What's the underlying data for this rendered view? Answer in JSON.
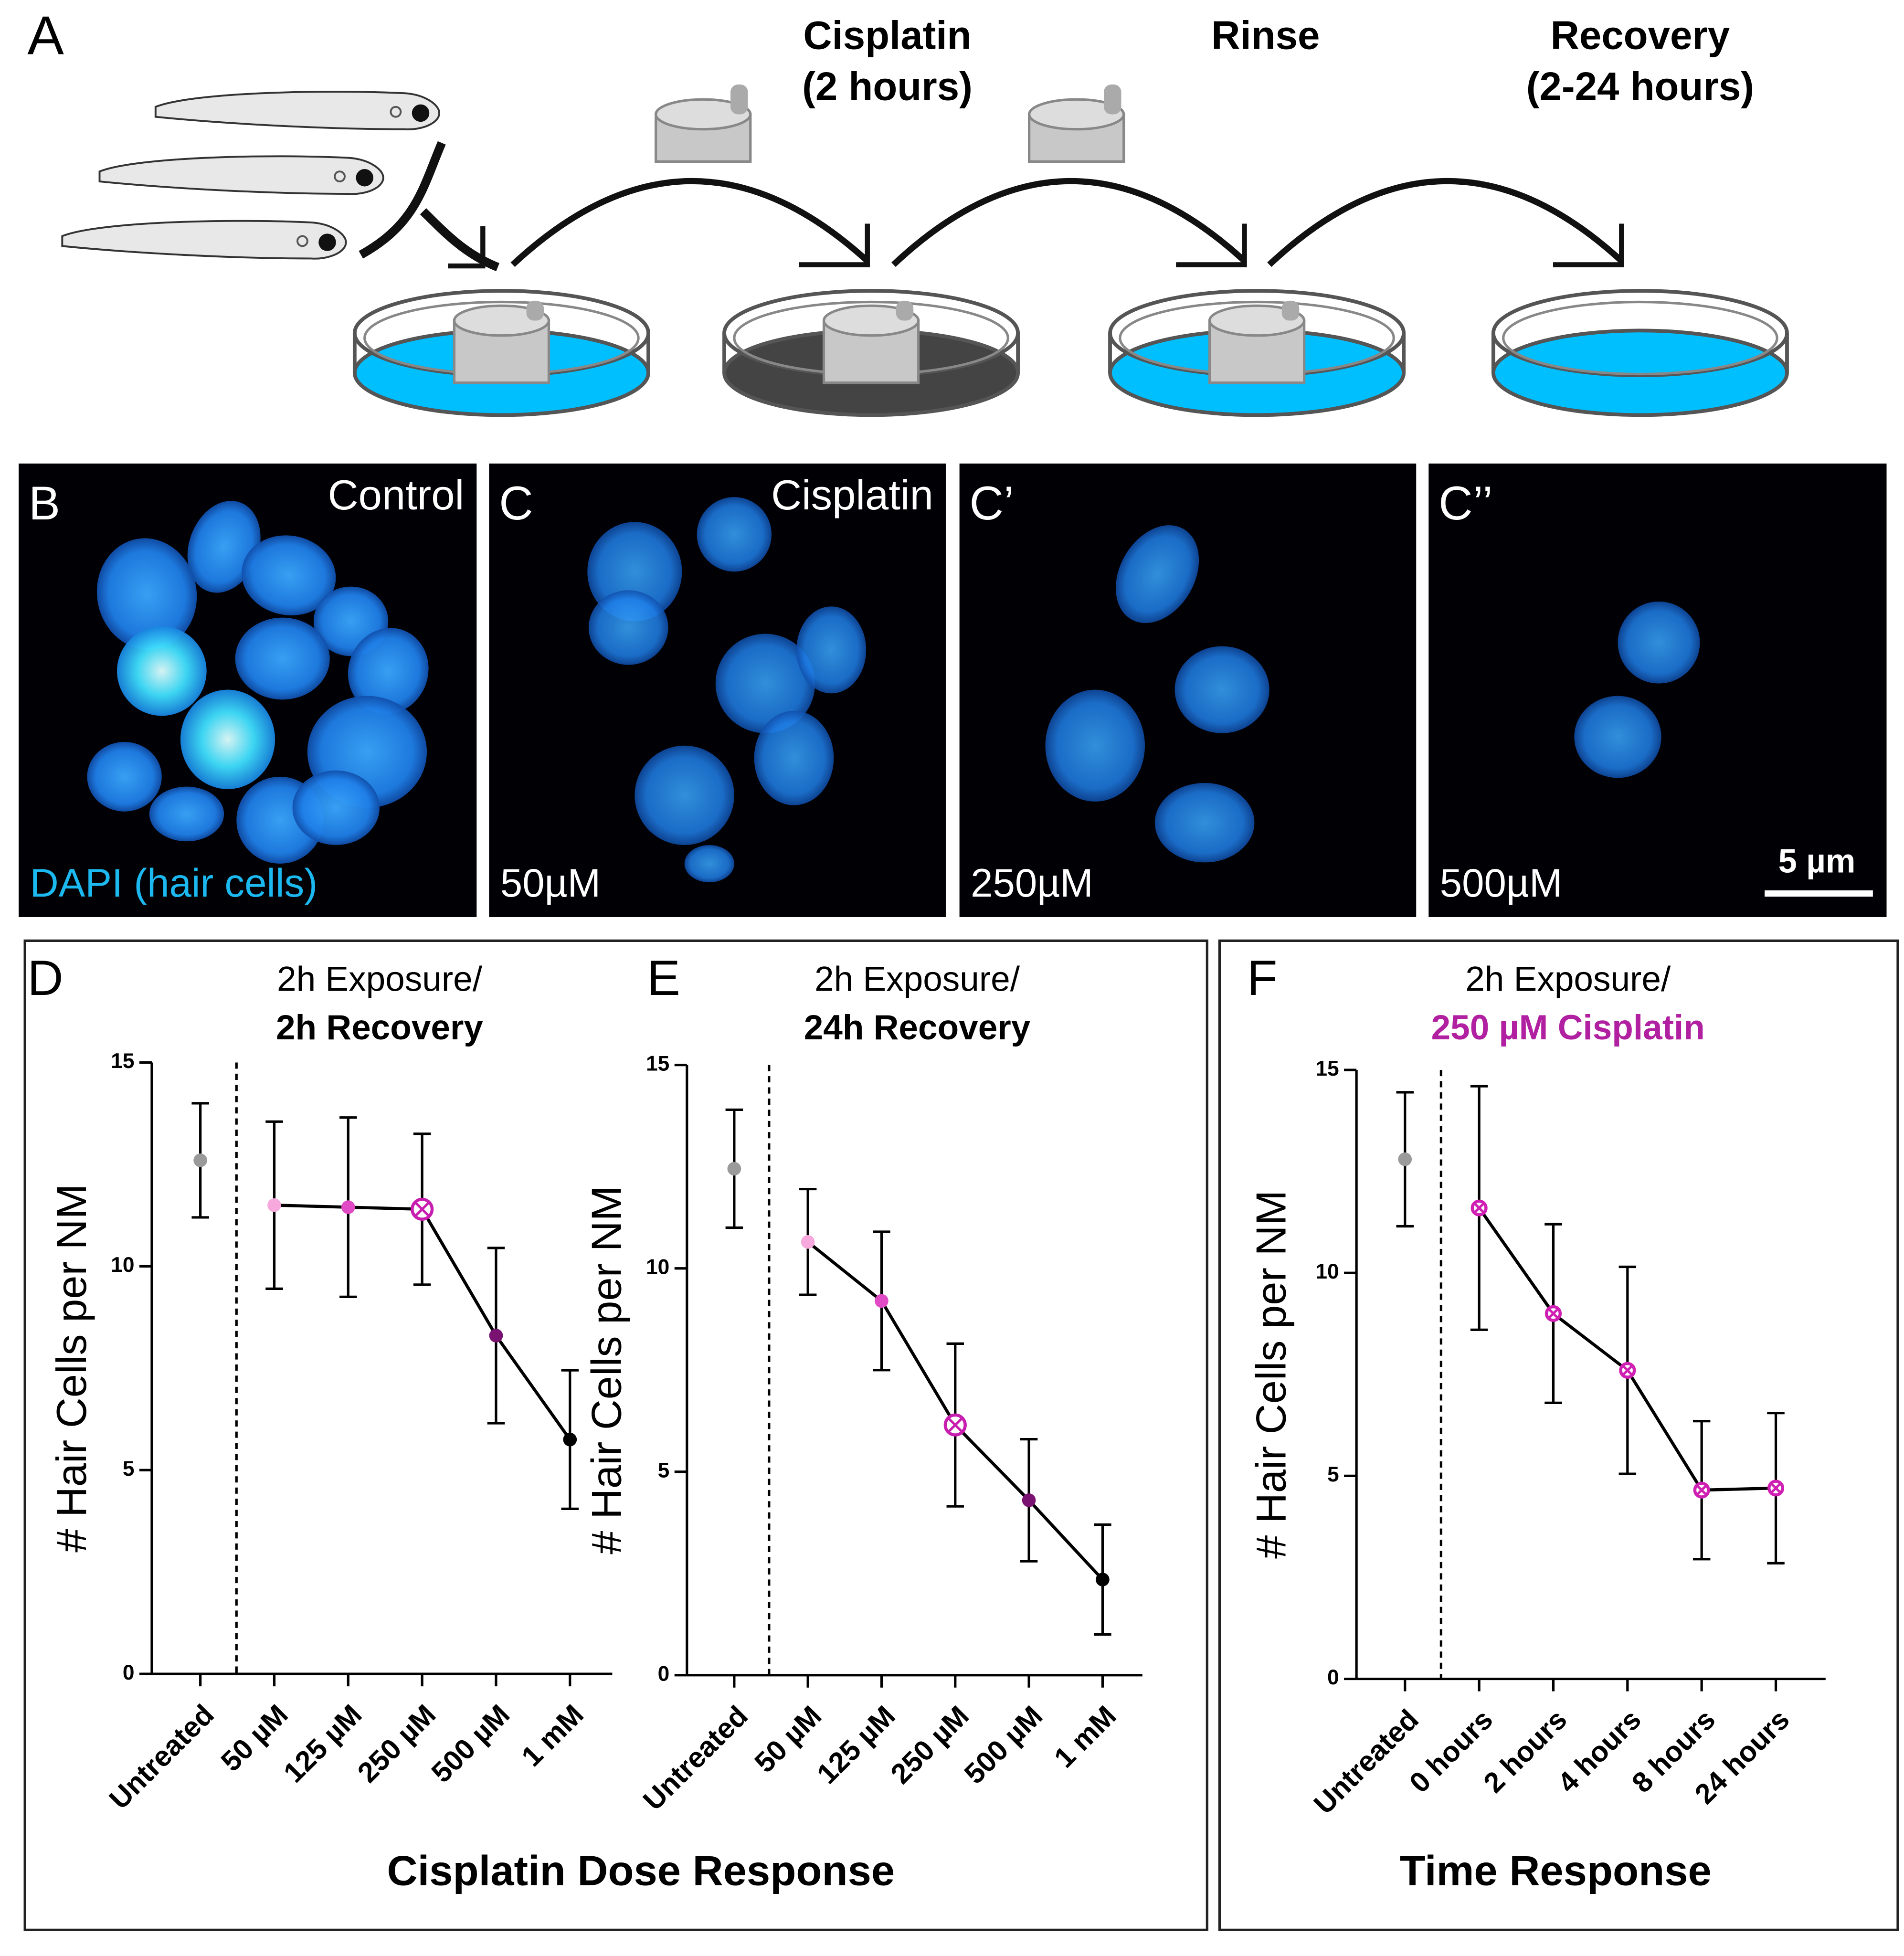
{
  "panel_a": {
    "label": "A",
    "steps": [
      {
        "title": "Cisplatin",
        "subtitle": "(2 hours)"
      },
      {
        "title": "Rinse"
      },
      {
        "title": "Recovery",
        "subtitle": "(2-24 hours)"
      }
    ]
  },
  "micrographs": [
    {
      "label": "B",
      "title": "Control",
      "caption": "DAPI (hair cells)"
    },
    {
      "label": "C",
      "title": "Cisplatin",
      "caption": "50µM"
    },
    {
      "label": "C’",
      "caption": "250µM"
    },
    {
      "label": "C’’",
      "caption": "500µM",
      "scale_bar": "5 µm"
    }
  ],
  "chart_data": [
    {
      "type": "line",
      "panel": "D",
      "title": "2h Exposure/",
      "subtitle": "2h Recovery",
      "subtitle_color": "#000000",
      "ylabel": "# Hair Cells per NM",
      "xlabel": "Cisplatin Dose Response",
      "ylim": [
        0,
        15
      ],
      "yticks": [
        0,
        5,
        10,
        15
      ],
      "control": {
        "category": "Untreated",
        "value": 12.6,
        "error": 1.4,
        "color": "#9a9a9a"
      },
      "categories": [
        "50 µM",
        "125 µM",
        "250 µM",
        "500 µM",
        "1 mM"
      ],
      "values": [
        11.5,
        11.45,
        11.4,
        8.3,
        5.75
      ],
      "errors": [
        2.05,
        2.2,
        1.85,
        2.15,
        1.7
      ],
      "colors": [
        "#f7a8dc",
        "#e04ac4",
        "#c81eb0",
        "#7a1272",
        "#000000"
      ],
      "markers": [
        "dot",
        "dot",
        "crossed-circle",
        "dot",
        "dot"
      ],
      "line_color": "#000000"
    },
    {
      "type": "line",
      "panel": "E",
      "title": "2h Exposure/",
      "subtitle": "24h Recovery",
      "subtitle_color": "#000000",
      "ylabel": "# Hair Cells per NM",
      "ylim": [
        0,
        15
      ],
      "yticks": [
        0,
        5,
        10,
        15
      ],
      "control": {
        "category": "Untreated",
        "value": 12.45,
        "error": 1.45,
        "color": "#9a9a9a"
      },
      "categories": [
        "50 µM",
        "125 µM",
        "250 µM",
        "500 µM",
        "1 mM"
      ],
      "values": [
        10.65,
        9.2,
        6.15,
        4.3,
        2.35
      ],
      "errors": [
        1.3,
        1.7,
        2.0,
        1.5,
        1.35
      ],
      "colors": [
        "#f7a8dc",
        "#e04ac4",
        "#c81eb0",
        "#7a1272",
        "#000000"
      ],
      "markers": [
        "dot",
        "dot",
        "crossed-circle",
        "dot",
        "dot"
      ],
      "line_color": "#000000"
    },
    {
      "type": "line",
      "panel": "F",
      "title": "2h Exposure/",
      "subtitle": "250 µM Cisplatin",
      "subtitle_color": "#b020a0",
      "ylabel": "# Hair Cells per NM",
      "xlabel": "Time Response",
      "ylim": [
        0,
        15
      ],
      "yticks": [
        0,
        5,
        10,
        15
      ],
      "control": {
        "category": "Untreated",
        "value": 12.8,
        "error": 1.65,
        "color": "#9a9a9a"
      },
      "categories": [
        "0 hours",
        "2 hours",
        "4 hours",
        "8 hours",
        "24 hours"
      ],
      "values": [
        11.6,
        9.0,
        7.6,
        4.65,
        4.7
      ],
      "errors": [
        3.0,
        2.2,
        2.55,
        1.7,
        1.85
      ],
      "colors": [
        "#d020b4",
        "#d020b4",
        "#d020b4",
        "#d020b4",
        "#d020b4"
      ],
      "markers": [
        "crossed-circle",
        "crossed-circle",
        "crossed-circle",
        "crossed-circle",
        "crossed-circle"
      ],
      "line_color": "#000000"
    }
  ]
}
